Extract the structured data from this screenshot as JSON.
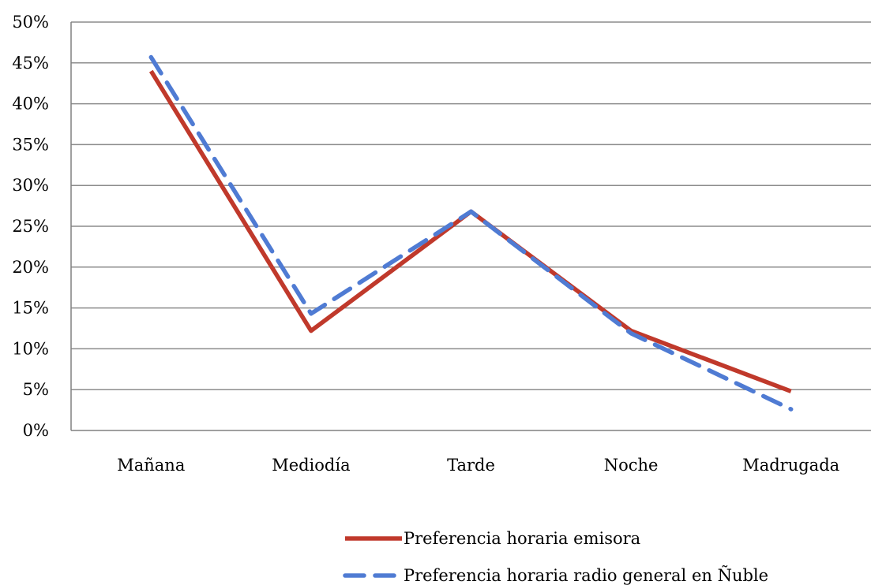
{
  "chart_data": {
    "type": "line",
    "categories": [
      "Mañana",
      "Mediodía",
      "Tarde",
      "Noche",
      "Madrugada"
    ],
    "ylim": [
      0,
      0.5
    ],
    "y_ticks": [
      "0%",
      "5%",
      "10%",
      "15%",
      "20%",
      "25%",
      "30%",
      "35%",
      "40%",
      "45%",
      "50%"
    ],
    "grid": true,
    "legend_position": "bottom",
    "series": [
      {
        "name": "Preferencia horaria emisora",
        "values": [
          0.44,
          0.122,
          0.268,
          0.122,
          0.048
        ],
        "color": "#c0392b",
        "style": "solid"
      },
      {
        "name": "Preferencia horaria radio general en Ñuble",
        "values": [
          0.457,
          0.143,
          0.268,
          0.119,
          0.026
        ],
        "color": "#4f7bd3",
        "style": "dashed"
      }
    ]
  }
}
